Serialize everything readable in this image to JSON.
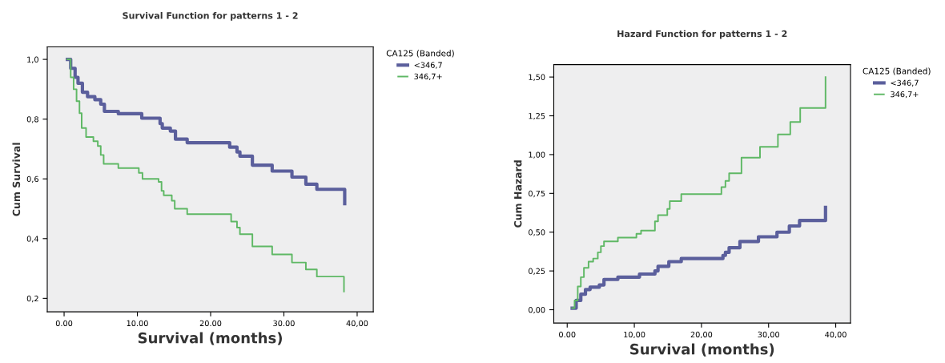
{
  "chart_data": [
    {
      "type": "step",
      "title": "Survival Function for patterns 1 - 2",
      "xlabel": "Survival (months)",
      "ylabel": "Cum Survival",
      "legend_title": "CA125 (Banded)",
      "legend": "top right",
      "xlim": [
        -2.3,
        42.2
      ],
      "ylim": [
        0.155,
        1.042
      ],
      "xticks": [
        {
          "value": 0,
          "label": "0.00"
        },
        {
          "value": 10,
          "label": "10.00"
        },
        {
          "value": 20,
          "label": "20.00"
        },
        {
          "value": 30,
          "label": "30.00"
        },
        {
          "value": 40,
          "label": "40,00"
        }
      ],
      "yticks": [
        {
          "value": 0.2,
          "label": "0,2"
        },
        {
          "value": 0.4,
          "label": "0,4"
        },
        {
          "value": 0.6,
          "label": "0,6"
        },
        {
          "value": 0.8,
          "label": "0,8"
        },
        {
          "value": 1.0,
          "label": "1,0"
        }
      ],
      "series": [
        {
          "name": "<346,7",
          "color": "#5b5f9c",
          "x": [
            0.45,
            0.9,
            1.5,
            1.9,
            2.5,
            3.2,
            4.2,
            5.0,
            5.5,
            7.4,
            10.6,
            13.1,
            13.4,
            14.5,
            15.2,
            16.8,
            22.6,
            23.6,
            24.0,
            25.7,
            28.4,
            31.1,
            33.0,
            34.5,
            38.3
          ],
          "values": [
            1.0,
            0.97,
            0.94,
            0.92,
            0.89,
            0.875,
            0.865,
            0.85,
            0.826,
            0.818,
            0.803,
            0.785,
            0.77,
            0.76,
            0.733,
            0.721,
            0.706,
            0.69,
            0.676,
            0.646,
            0.626,
            0.606,
            0.582,
            0.565,
            0.517
          ]
        },
        {
          "name": "346,7+",
          "color": "#5fb865",
          "x": [
            0.45,
            0.9,
            1.3,
            1.7,
            2.1,
            2.4,
            3.0,
            4.0,
            4.6,
            5.0,
            5.4,
            7.4,
            10.2,
            10.7,
            12.9,
            13.3,
            13.6,
            14.7,
            15.1,
            16.8,
            22.8,
            23.6,
            24.0,
            25.7,
            28.4,
            31.1,
            33.0,
            34.5,
            38.2
          ],
          "values": [
            1.0,
            0.94,
            0.9,
            0.86,
            0.82,
            0.77,
            0.74,
            0.726,
            0.71,
            0.68,
            0.65,
            0.636,
            0.62,
            0.6,
            0.59,
            0.56,
            0.545,
            0.527,
            0.5,
            0.482,
            0.457,
            0.437,
            0.415,
            0.374,
            0.347,
            0.32,
            0.297,
            0.273,
            0.223
          ]
        }
      ]
    },
    {
      "type": "step",
      "title": "Hazard Function for patterns 1 - 2",
      "xlabel": "Survival (months)",
      "ylabel": "Cum Hazard",
      "legend_title": "CA125 (Banded)",
      "legend": "top right",
      "xlim": [
        -2.0,
        42.2
      ],
      "ylim": [
        -0.086,
        1.58
      ],
      "xticks": [
        {
          "value": 0,
          "label": "0.00"
        },
        {
          "value": 10,
          "label": "10,00"
        },
        {
          "value": 20,
          "label": "20,00"
        },
        {
          "value": 30,
          "label": "30,00"
        },
        {
          "value": 40,
          "label": "40,00"
        }
      ],
      "yticks": [
        {
          "value": 0,
          "label": "0,00"
        },
        {
          "value": 0.25,
          "label": "0,25"
        },
        {
          "value": 0.5,
          "label": "0,50"
        },
        {
          "value": 0.75,
          "label": "0,75"
        },
        {
          "value": 1.0,
          "label": "1,00"
        },
        {
          "value": 1.25,
          "label": "1,25"
        },
        {
          "value": 1.5,
          "label": "1,50"
        }
      ],
      "series": [
        {
          "name": "<346,7",
          "color": "#5b5f9c",
          "x": [
            0.74,
            1.34,
            2.03,
            2.72,
            3.41,
            4.79,
            5.48,
            7.55,
            10.77,
            13.07,
            13.53,
            15.14,
            16.99,
            23.2,
            23.57,
            24.12,
            25.73,
            28.49,
            31.25,
            33.09,
            34.61,
            38.48
          ],
          "values": [
            0.01,
            0.06,
            0.1,
            0.13,
            0.145,
            0.16,
            0.195,
            0.21,
            0.23,
            0.25,
            0.28,
            0.31,
            0.33,
            0.35,
            0.37,
            0.4,
            0.44,
            0.47,
            0.5,
            0.54,
            0.575,
            0.66
          ]
        },
        {
          "name": "346,7+",
          "color": "#5fb865",
          "x": [
            0.74,
            1.1,
            1.57,
            2.03,
            2.49,
            3.18,
            3.87,
            4.56,
            5.02,
            5.48,
            7.55,
            10.31,
            11.0,
            13.07,
            13.53,
            14.91,
            15.28,
            16.99,
            22.97,
            23.57,
            24.12,
            25.96,
            28.72,
            31.39,
            33.23,
            34.71,
            38.48
          ],
          "values": [
            0.01,
            0.06,
            0.15,
            0.21,
            0.27,
            0.31,
            0.33,
            0.37,
            0.41,
            0.44,
            0.465,
            0.49,
            0.51,
            0.57,
            0.61,
            0.65,
            0.7,
            0.745,
            0.79,
            0.83,
            0.88,
            0.98,
            1.05,
            1.13,
            1.21,
            1.3,
            1.5
          ]
        }
      ]
    }
  ]
}
